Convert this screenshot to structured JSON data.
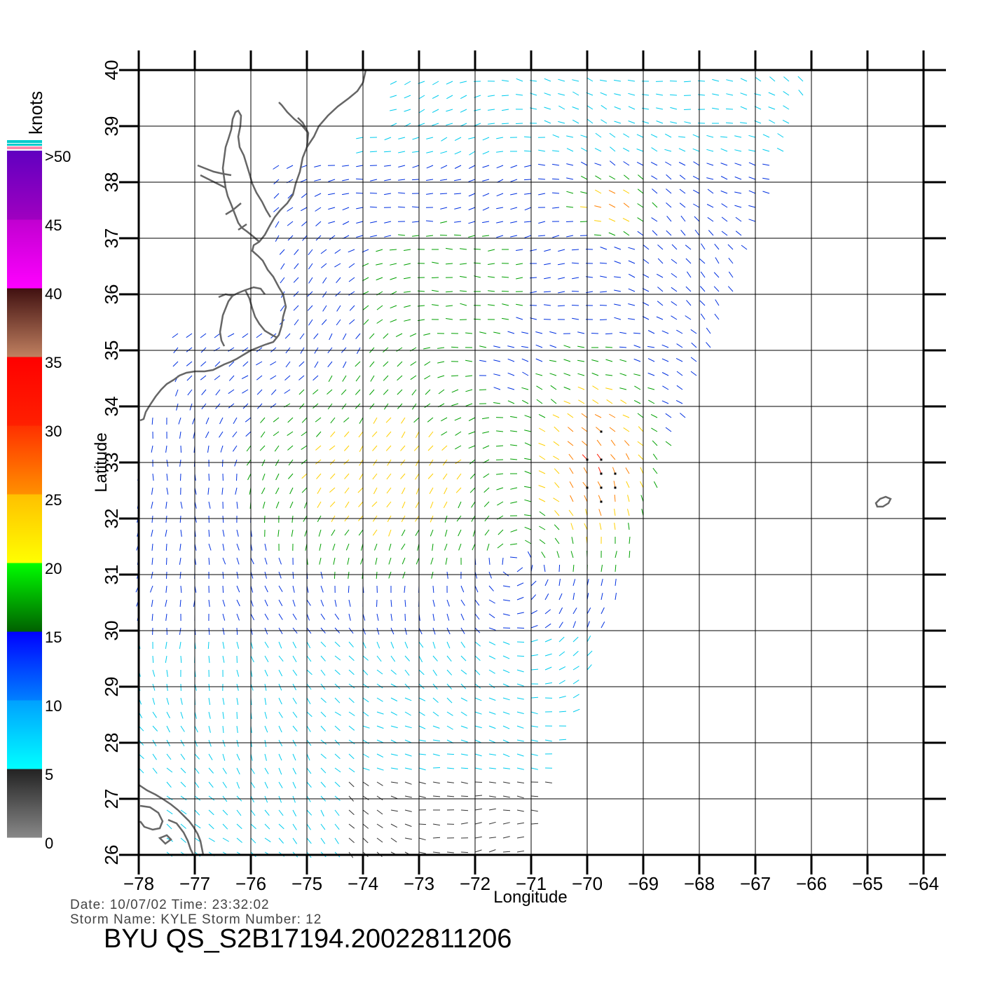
{
  "map": {
    "xlabel": "Longitude",
    "ylabel": "Latitude",
    "lon_ticks": [
      "−78",
      "−77",
      "−76",
      "−75",
      "−74",
      "−73",
      "−72",
      "−71",
      "−70",
      "−69",
      "−68",
      "−67",
      "−66",
      "−65",
      "−64"
    ],
    "lat_ticks": [
      "26",
      "27",
      "28",
      "29",
      "30",
      "31",
      "32",
      "33",
      "34",
      "35",
      "36",
      "37",
      "38",
      "39",
      "40"
    ],
    "lon_range": [
      -78,
      -64
    ],
    "lat_range": [
      26,
      40
    ],
    "grid": true,
    "swath_edge_color": "#999999",
    "coast_color": "#666666"
  },
  "legend": {
    "unit": "knots",
    "labels": [
      ">50",
      "45",
      "40",
      "35",
      "30",
      "25",
      "20",
      "15",
      "10",
      "5",
      "0"
    ],
    "stops": [
      {
        "from": 0,
        "to": 5,
        "colors": [
          "#888888",
          "#222222"
        ]
      },
      {
        "from": 5,
        "to": 10,
        "colors": [
          "#00ffff",
          "#00a0ff"
        ]
      },
      {
        "from": 10,
        "to": 15,
        "colors": [
          "#0080ff",
          "#0000ff"
        ]
      },
      {
        "from": 15,
        "to": 20,
        "colors": [
          "#006000",
          "#00ff00"
        ]
      },
      {
        "from": 20,
        "to": 25,
        "colors": [
          "#ffff00",
          "#ffc000"
        ]
      },
      {
        "from": 25,
        "to": 30,
        "colors": [
          "#ff9000",
          "#ff3000"
        ]
      },
      {
        "from": 30,
        "to": 35,
        "colors": [
          "#ff2000",
          "#ff0000"
        ]
      },
      {
        "from": 35,
        "to": 40,
        "colors": [
          "#c08060",
          "#401010"
        ]
      },
      {
        "from": 40,
        "to": 45,
        "colors": [
          "#ff00ff",
          "#c000d0"
        ]
      },
      {
        "from": 45,
        "to": 50,
        "colors": [
          "#a000c0",
          "#6000c0"
        ]
      }
    ],
    "top_marks": [
      "#00cccc",
      "#ff88aa"
    ]
  },
  "footer": {
    "line1": "Date: 10/07/02   Time: 23:32:02",
    "line2": "Storm Name: KYLE   Storm Number: 12",
    "title": "BYU  QS_S2B17194.20022811206"
  }
}
